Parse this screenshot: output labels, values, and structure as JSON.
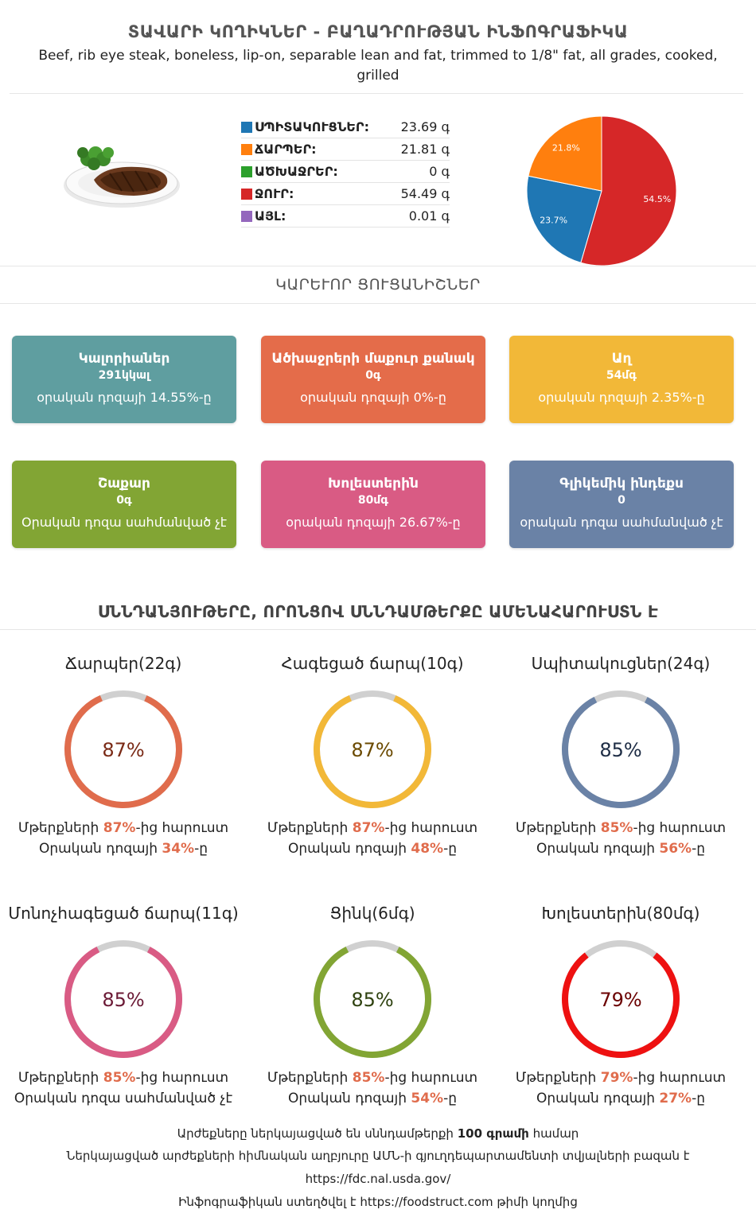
{
  "header": {
    "title": "ՏԱՎԱՐԻ ԿՈՂԻԿՆԵՐ - ԲԱՂԱԴՐՈՒԹՅԱՆ ԻՆՖՈԳՐԱՖԻԿԱ",
    "subtitle": "Beef, rib eye steak, boneless, lip-on, separable lean and fat, trimmed to 1/8\" fat, all grades, cooked, grilled"
  },
  "composition": [
    {
      "name": "ՍՊԻՏԱԿՈՒՑՆԵՐ:",
      "value": "23.69 գ",
      "color": "#1f77b4"
    },
    {
      "name": "ՃԱՐՊԵՐ:",
      "value": "21.81 գ",
      "color": "#ff7f0e"
    },
    {
      "name": "ԱԾԽԱՋՐԵՐ:",
      "value": "0 գ",
      "color": "#2ca02c"
    },
    {
      "name": "ՋՈՒՐ:",
      "value": "54.49 գ",
      "color": "#d62728"
    },
    {
      "name": "ԱՅԼ:",
      "value": "0.01 գ",
      "color": "#9467bd"
    }
  ],
  "chart_data": {
    "type": "pie",
    "slices": [
      {
        "label": "54.5%",
        "value": 54.49,
        "color": "#d62728"
      },
      {
        "label": "23.7%",
        "value": 23.69,
        "color": "#1f77b4"
      },
      {
        "label": "21.8%",
        "value": 21.81,
        "color": "#ff7f0e"
      }
    ]
  },
  "key_section_title": "ԿԱՐԵՒՈՐ ՑՈՒՑԱՆԻՇՆԵՐ",
  "cards": [
    {
      "title": "Կալորիաներ",
      "value": "291կկալ",
      "desc": "օրական դոզայի 14.55%-ը",
      "color": "#5f9ea0"
    },
    {
      "title": "Ածխաջրերի մաքուր քանակ",
      "value": "0գ",
      "desc": "օրական դոզայի 0%-ը",
      "color": "#e46c4a"
    },
    {
      "title": "Աղ",
      "value": "54մգ",
      "desc": "օրական դոզայի 2.35%-ը",
      "color": "#f2b838"
    },
    {
      "title": "Շաքար",
      "value": "0գ",
      "desc": "Օրական դոզա սահմանված չէ",
      "color": "#82a534"
    },
    {
      "title": "Խոլեստերին",
      "value": "80մգ",
      "desc": "օրական դոզայի 26.67%-ը",
      "color": "#d95b84"
    },
    {
      "title": "Գլիկեմիկ ինդեքս",
      "value": "0",
      "desc": "օրական դոզա սահմանված չէ",
      "color": "#6a82a6"
    }
  ],
  "rich_section_title": "ՍՆՆԴԱՆՅՈՒԹԵՐԸ, ՈՐՈՆՑՈՎ ՍՆՆԴԱՄԹԵՐՔԸ ԱՄԵՆԱՀԱՐՈՒՍՏՆ Է",
  "nutrients": [
    {
      "title": "Ճարպեր(22գ)",
      "percent": 87,
      "percent_label": "87%",
      "color": "#e06c4c",
      "text_color": "#7a2a16",
      "l1_pre": "Մթերքների ",
      "l1_val": "87%",
      "l1_post": "-ից հարուստ",
      "l2_pre": "Օրական դոզայի ",
      "l2_val": "34%",
      "l2_post": "-ը"
    },
    {
      "title": "Հագեցած ճարպ(10գ)",
      "percent": 87,
      "percent_label": "87%",
      "color": "#f2b838",
      "text_color": "#6b4a00",
      "l1_pre": "Մթերքների ",
      "l1_val": "87%",
      "l1_post": "-ից հարուստ",
      "l2_pre": "Օրական դոզայի ",
      "l2_val": "48%",
      "l2_post": "-ը"
    },
    {
      "title": "Սպիտակուցներ(24գ)",
      "percent": 85,
      "percent_label": "85%",
      "color": "#6a82a6",
      "text_color": "#1e2d45",
      "l1_pre": "Մթերքների ",
      "l1_val": "85%",
      "l1_post": "-ից հարուստ",
      "l2_pre": "Օրական դոզայի ",
      "l2_val": "56%",
      "l2_post": "-ը"
    },
    {
      "title": "Մոնոչհագեցած ճարպ(11գ)",
      "percent": 85,
      "percent_label": "85%",
      "color": "#d95b84",
      "text_color": "#6b1a36",
      "l1_pre": "Մթերքների ",
      "l1_val": "85%",
      "l1_post": "-ից հարուստ",
      "l2_pre": "Օրական դոզա սահմանված չէ",
      "l2_val": "",
      "l2_post": ""
    },
    {
      "title": "Ցինկ(6մգ)",
      "percent": 85,
      "percent_label": "85%",
      "color": "#82a534",
      "text_color": "#2f4210",
      "l1_pre": "Մթերքների ",
      "l1_val": "85%",
      "l1_post": "-ից հարուստ",
      "l2_pre": "Օրական դոզայի ",
      "l2_val": "54%",
      "l2_post": "-ը"
    },
    {
      "title": "Խոլեստերին(80մգ)",
      "percent": 79,
      "percent_label": "79%",
      "color": "#ee1111",
      "text_color": "#6b0000",
      "l1_pre": "Մթերքների ",
      "l1_val": "79%",
      "l1_post": "-ից հարուստ",
      "l2_pre": "Օրական դոզայի ",
      "l2_val": "27%",
      "l2_post": "-ը"
    }
  ],
  "footer": {
    "line1_pre": "Արժեքները ներկայացված են սննդամթերքի ",
    "line1_bold": "100 գրամի",
    "line1_post": " համար",
    "line2": "Ներկայացված արժեքների հիմնական աղբյուրը ԱՄՆ-ի գյուղդեպարտամենտի տվյալների բազան է",
    "line3": "https://fdc.nal.usda.gov/",
    "line4_pre": "Ինֆոգրաֆիկան ստեղծվել է ",
    "line4_link": "https://foodstruct.com",
    "line4_post": " թիմի կողմից"
  }
}
